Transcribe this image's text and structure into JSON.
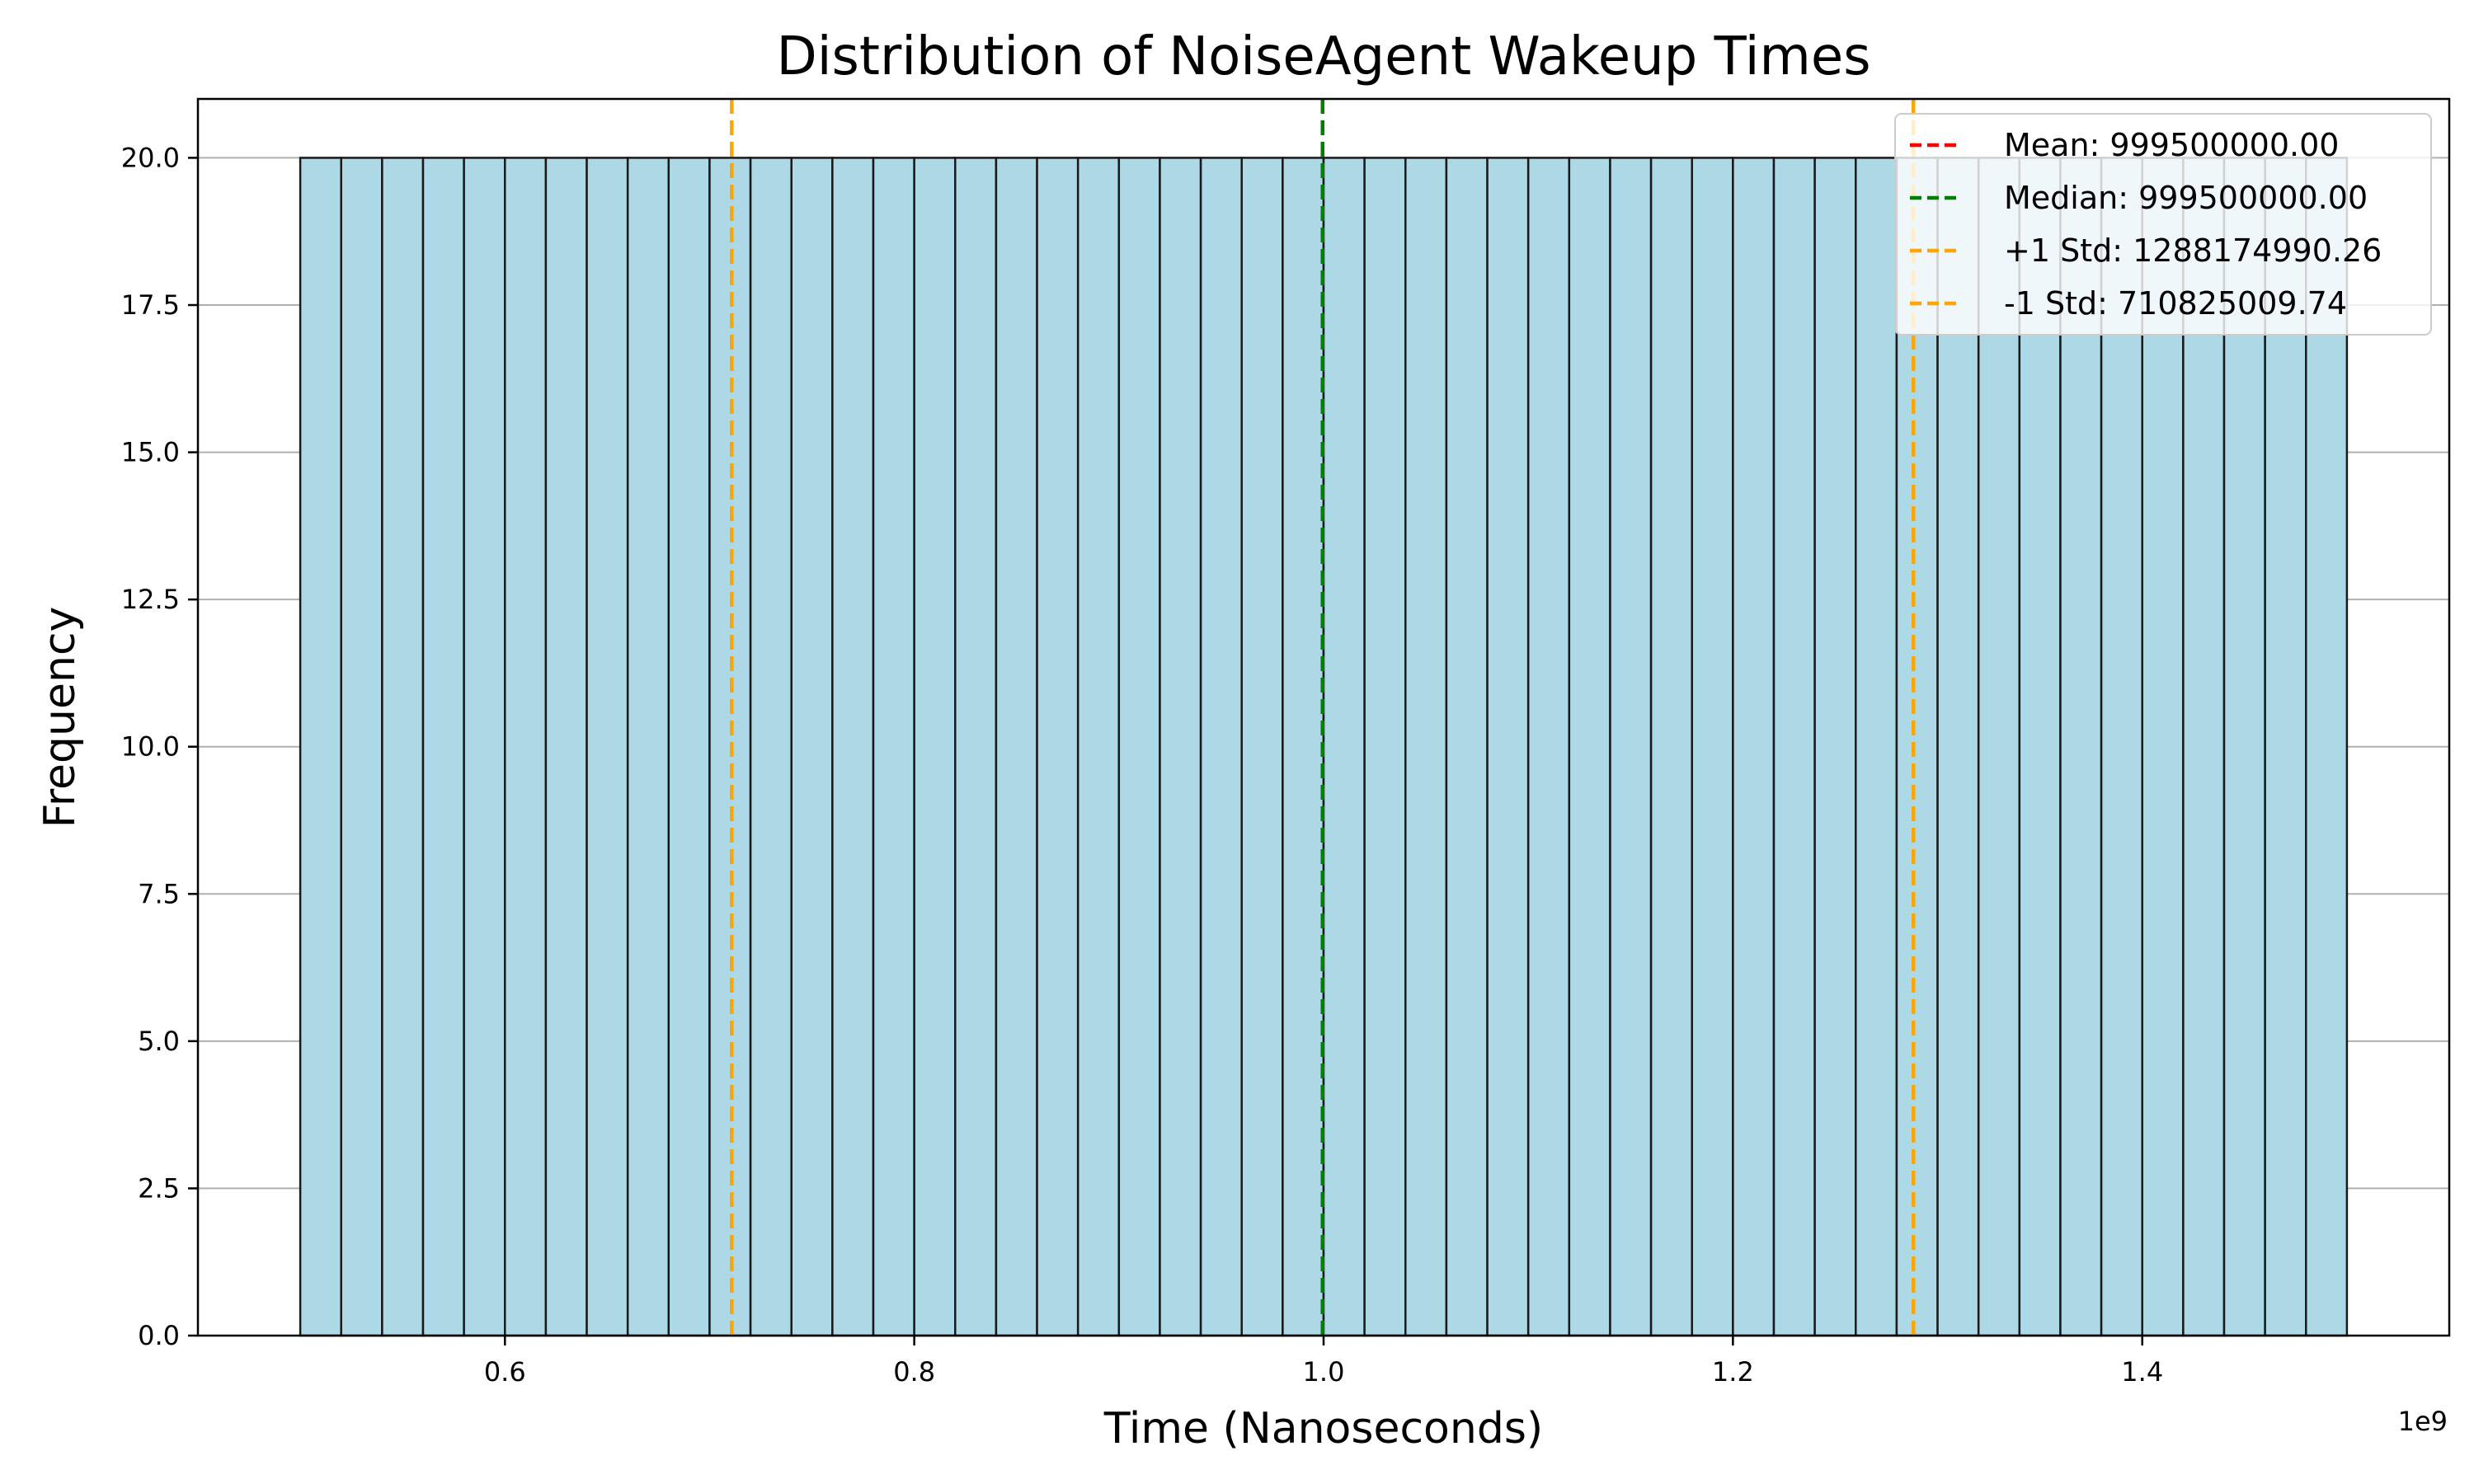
{
  "chart_data": {
    "type": "bar",
    "title": "Distribution of NoiseAgent Wakeup Times",
    "xlabel": "Time (Nanoseconds)",
    "ylabel": "Frequency",
    "x_offset_label": "1e9",
    "xlim": [
      0.45,
      1.55
    ],
    "ylim": [
      0,
      21
    ],
    "grid": "y",
    "legend_position": "top-right",
    "x_ticks": [
      0.6,
      0.8,
      1.0,
      1.2,
      1.4
    ],
    "x_tick_labels": [
      "0.6",
      "0.8",
      "1.0",
      "1.2",
      "1.4"
    ],
    "y_ticks": [
      0,
      2.5,
      5,
      7.5,
      10,
      12.5,
      15,
      17.5,
      20
    ],
    "y_tick_labels": [
      "0.0",
      "2.5",
      "5.0",
      "7.5",
      "10.0",
      "12.5",
      "15.0",
      "17.5",
      "20.0"
    ],
    "bin_range": [
      0.5,
      1.5
    ],
    "bin_count": 50,
    "bin_height": 20,
    "bar_color": "#add8e6",
    "bar_edge_color": "#1a1a1a",
    "vlines": [
      {
        "label": "Mean: 999500000.00",
        "x": 0.9995,
        "color": "#ff0000"
      },
      {
        "label": "Median: 999500000.00",
        "x": 0.9995,
        "color": "#008000"
      },
      {
        "label": "+1 Std: 1288174990.26",
        "x": 1.28817499026,
        "color": "#ffa500"
      },
      {
        "label": "-1 Std: 710825009.74",
        "x": 0.71082500974,
        "color": "#ffa500"
      }
    ]
  }
}
